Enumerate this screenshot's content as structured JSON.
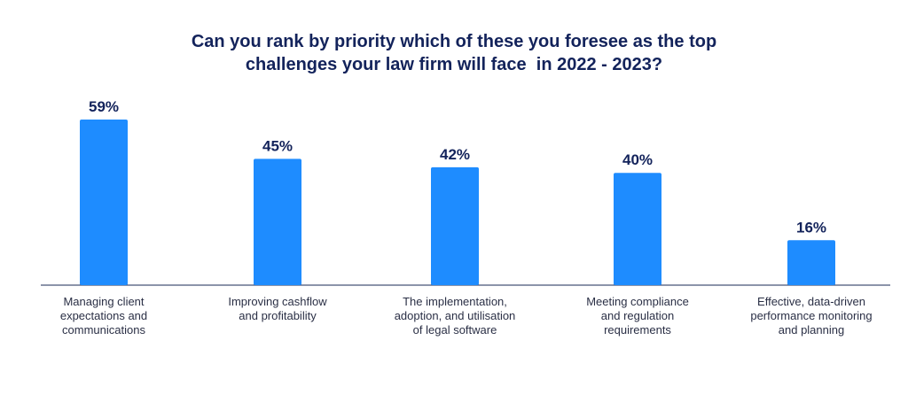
{
  "chart_data": {
    "type": "bar",
    "title_lines": [
      "Can you rank by priority which of these you foresee as the top",
      "challenges your law firm will face  in 2022 - 2023?"
    ],
    "categories": [
      [
        "Managing client",
        "expectations and",
        "communications"
      ],
      [
        "Improving cashflow",
        "and profitability"
      ],
      [
        "The implementation,",
        "adoption, and utilisation",
        "of legal software"
      ],
      [
        "Meeting compliance",
        "and regulation",
        "requirements"
      ],
      [
        "Effective, data-driven",
        "performance monitoring",
        "and planning"
      ]
    ],
    "values": [
      59,
      45,
      42,
      40,
      16
    ],
    "value_labels": [
      "59%",
      "45%",
      "42%",
      "40%",
      "16%"
    ],
    "ylim": [
      0,
      59
    ],
    "grid": false,
    "legend": "none",
    "bar_color": "#1e8cff",
    "title_color": "#13235b"
  }
}
